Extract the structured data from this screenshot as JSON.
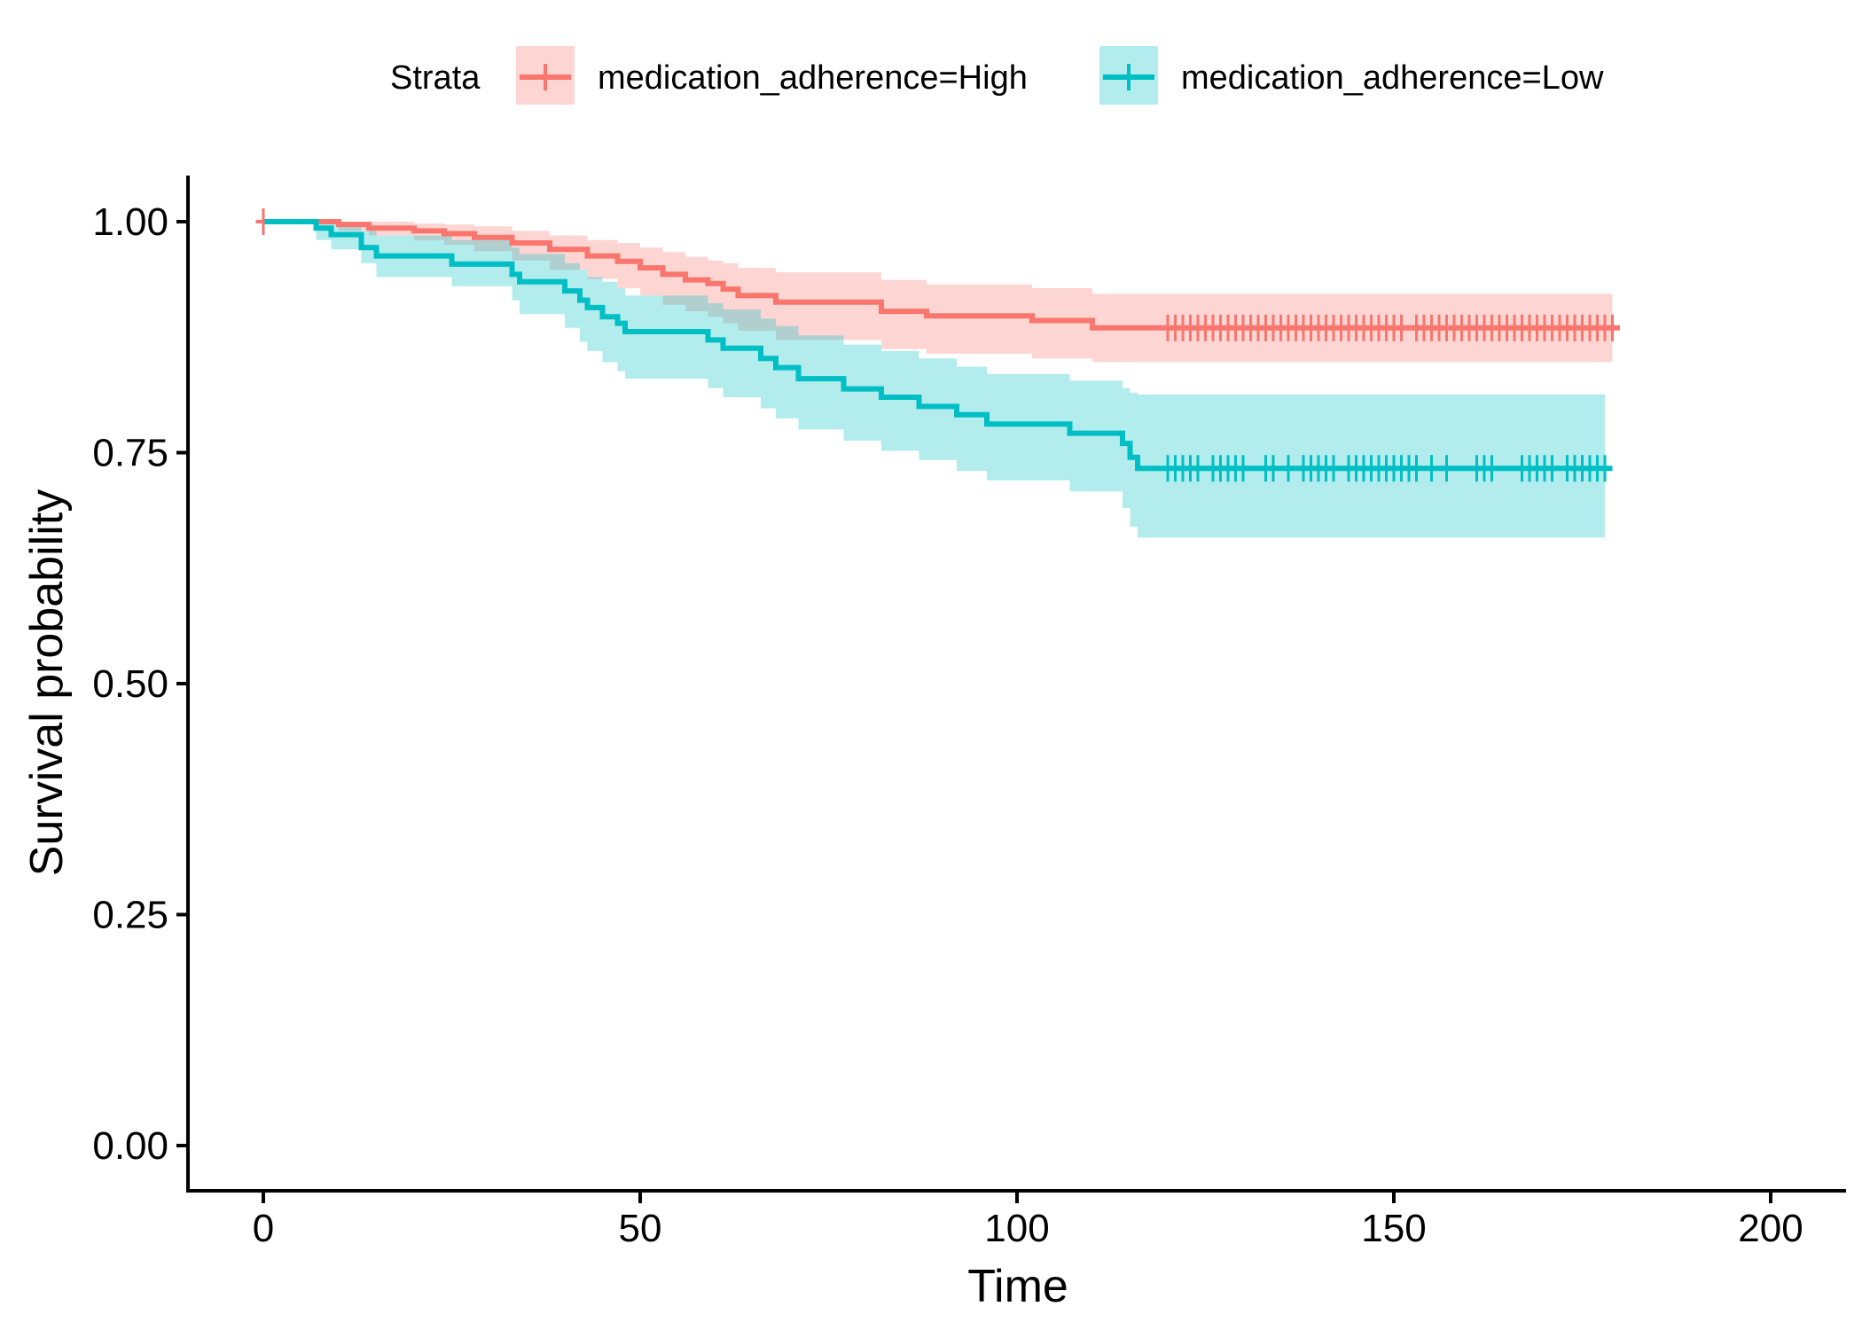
{
  "chart_data": {
    "type": "line",
    "xlabel": "Time",
    "ylabel": "Survival probability",
    "xlim": [
      -10,
      210
    ],
    "ylim": [
      -0.05,
      1.05
    ],
    "x_ticks": [
      0,
      50,
      100,
      150,
      200
    ],
    "x_tick_labels": [
      "0",
      "50",
      "100",
      "150",
      "200"
    ],
    "y_ticks": [
      0,
      0.25,
      0.5,
      0.75,
      1.0
    ],
    "y_tick_labels": [
      "0.00",
      "0.25",
      "0.50",
      "0.75",
      "1.00"
    ],
    "grid": false,
    "legend": {
      "position": "top",
      "title": "Strata",
      "labels": [
        "medication_adherence=High",
        "medication_adherence=Low"
      ]
    },
    "series": [
      {
        "name": "medication_adherence=High",
        "color": "#F8766D",
        "steps": [
          [
            0,
            1.0
          ],
          [
            10,
            0.997
          ],
          [
            14,
            0.993
          ],
          [
            20,
            0.99
          ],
          [
            24,
            0.987
          ],
          [
            28,
            0.983
          ],
          [
            33,
            0.977
          ],
          [
            38,
            0.97
          ],
          [
            43,
            0.963
          ],
          [
            47,
            0.957
          ],
          [
            50,
            0.95
          ],
          [
            53,
            0.943
          ],
          [
            56,
            0.937
          ],
          [
            59,
            0.933
          ],
          [
            61,
            0.927
          ],
          [
            63,
            0.92
          ],
          [
            68,
            0.913
          ],
          [
            82,
            0.903
          ],
          [
            88,
            0.898
          ],
          [
            102,
            0.893
          ],
          [
            110,
            0.885
          ],
          [
            180,
            0.885
          ]
        ],
        "ci": [
          [
            0,
            1.0,
            1.0
          ],
          [
            10,
            1.0,
            0.99
          ],
          [
            14,
            1.0,
            0.985
          ],
          [
            20,
            0.998,
            0.98
          ],
          [
            24,
            0.997,
            0.975
          ],
          [
            28,
            0.995,
            0.968
          ],
          [
            33,
            0.99,
            0.958
          ],
          [
            38,
            0.985,
            0.948
          ],
          [
            43,
            0.98,
            0.938
          ],
          [
            47,
            0.977,
            0.928
          ],
          [
            50,
            0.972,
            0.92
          ],
          [
            53,
            0.967,
            0.91
          ],
          [
            56,
            0.962,
            0.903
          ],
          [
            59,
            0.958,
            0.897
          ],
          [
            61,
            0.955,
            0.89
          ],
          [
            63,
            0.95,
            0.882
          ],
          [
            68,
            0.945,
            0.872
          ],
          [
            82,
            0.937,
            0.862
          ],
          [
            88,
            0.932,
            0.857
          ],
          [
            102,
            0.928,
            0.852
          ],
          [
            110,
            0.922,
            0.848
          ],
          [
            179,
            0.922,
            0.848
          ]
        ],
        "censor_times": [
          0,
          120,
          121,
          122,
          123,
          124,
          125,
          126,
          127,
          128,
          129,
          130,
          131,
          132,
          133,
          134,
          135,
          136,
          137,
          138,
          139,
          140,
          141,
          142,
          143,
          144,
          145,
          146,
          147,
          148,
          149,
          150,
          151,
          153,
          154,
          155,
          156,
          157,
          158,
          159,
          160,
          161,
          162,
          163,
          164,
          165,
          166,
          167,
          168,
          169,
          170,
          171,
          172,
          173,
          174,
          175,
          176,
          177,
          178,
          179
        ]
      },
      {
        "name": "medication_adherence=Low",
        "color": "#00BFC4",
        "steps": [
          [
            0,
            1.0
          ],
          [
            7,
            0.993
          ],
          [
            9,
            0.986
          ],
          [
            13,
            0.972
          ],
          [
            15,
            0.963
          ],
          [
            25,
            0.954
          ],
          [
            33,
            0.943
          ],
          [
            34,
            0.935
          ],
          [
            40,
            0.925
          ],
          [
            42,
            0.915
          ],
          [
            43,
            0.907
          ],
          [
            45,
            0.897
          ],
          [
            47,
            0.89
          ],
          [
            48,
            0.881
          ],
          [
            59,
            0.872
          ],
          [
            61,
            0.863
          ],
          [
            66,
            0.852
          ],
          [
            68,
            0.842
          ],
          [
            71,
            0.83
          ],
          [
            77,
            0.819
          ],
          [
            82,
            0.81
          ],
          [
            87,
            0.8
          ],
          [
            92,
            0.791
          ],
          [
            96,
            0.781
          ],
          [
            107,
            0.771
          ],
          [
            114,
            0.76
          ],
          [
            115,
            0.745
          ],
          [
            116,
            0.733
          ],
          [
            179,
            0.733
          ]
        ],
        "ci": [
          [
            0,
            1.0,
            1.0
          ],
          [
            7,
            1.0,
            0.98
          ],
          [
            9,
            1.0,
            0.97
          ],
          [
            13,
            0.99,
            0.955
          ],
          [
            15,
            0.985,
            0.94
          ],
          [
            25,
            0.98,
            0.93
          ],
          [
            33,
            0.972,
            0.915
          ],
          [
            34,
            0.965,
            0.9
          ],
          [
            40,
            0.955,
            0.885
          ],
          [
            42,
            0.948,
            0.87
          ],
          [
            43,
            0.94,
            0.86
          ],
          [
            45,
            0.935,
            0.848
          ],
          [
            47,
            0.928,
            0.838
          ],
          [
            48,
            0.92,
            0.83
          ],
          [
            59,
            0.912,
            0.82
          ],
          [
            61,
            0.905,
            0.81
          ],
          [
            66,
            0.895,
            0.798
          ],
          [
            68,
            0.887,
            0.787
          ],
          [
            71,
            0.877,
            0.775
          ],
          [
            77,
            0.867,
            0.763
          ],
          [
            82,
            0.86,
            0.752
          ],
          [
            87,
            0.852,
            0.742
          ],
          [
            92,
            0.843,
            0.73
          ],
          [
            96,
            0.835,
            0.72
          ],
          [
            107,
            0.828,
            0.708
          ],
          [
            114,
            0.82,
            0.69
          ],
          [
            115,
            0.815,
            0.67
          ],
          [
            116,
            0.813,
            0.658
          ],
          [
            178,
            0.813,
            0.658
          ]
        ],
        "censor_times": [
          120,
          121,
          122,
          123,
          124,
          126,
          127,
          128,
          129,
          130,
          133,
          134,
          136,
          138,
          139,
          140,
          141,
          142,
          144,
          145,
          146,
          147,
          148,
          149,
          150,
          151,
          152,
          153,
          155,
          157,
          161,
          162,
          163,
          167,
          168,
          169,
          170,
          171,
          173,
          174,
          175,
          176,
          177,
          178
        ]
      }
    ]
  }
}
